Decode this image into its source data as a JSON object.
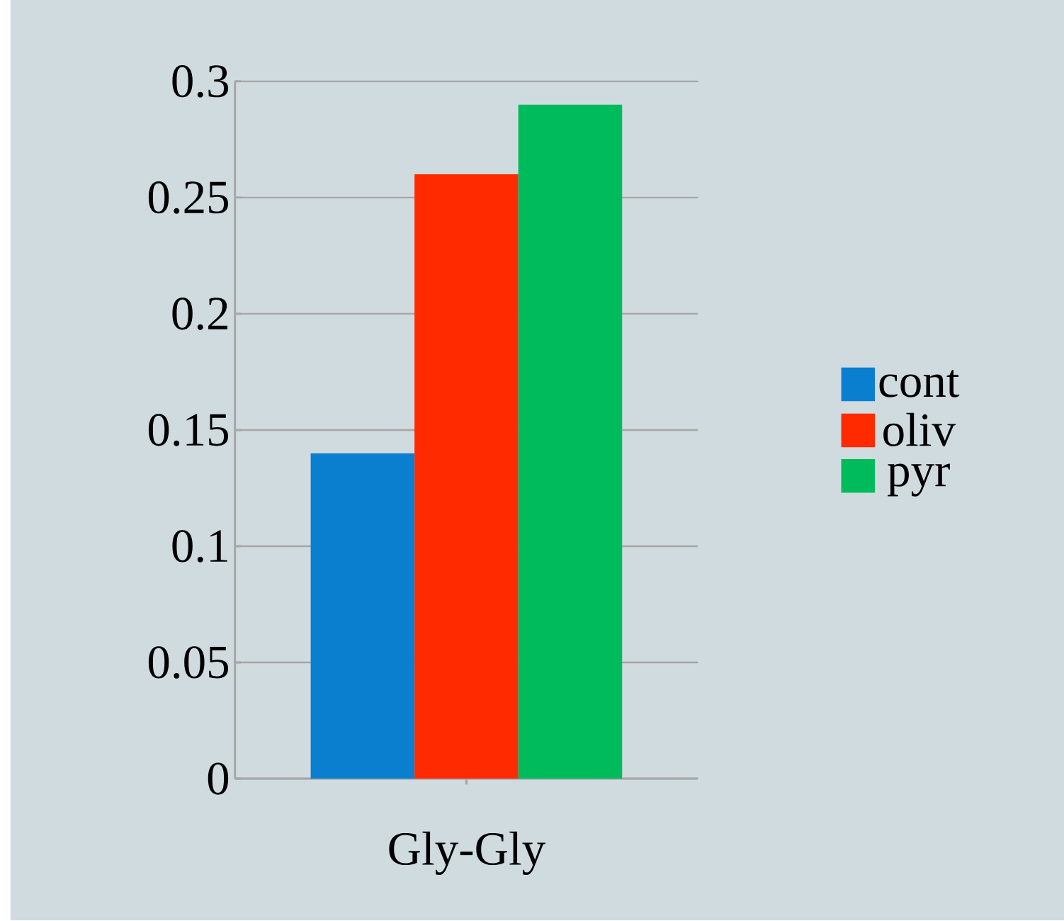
{
  "chart_data": {
    "type": "bar",
    "categories": [
      "Gly-Gly"
    ],
    "series": [
      {
        "name": "cont",
        "color": "#0a7fd0",
        "values": [
          0.14
        ]
      },
      {
        "name": "oliv",
        "color": "#ff2a00",
        "values": [
          0.26
        ]
      },
      {
        "name": "pyr",
        "color": "#00bb5c",
        "values": [
          0.29
        ]
      }
    ],
    "ylim": [
      0,
      0.3
    ],
    "yticks": [
      {
        "value": 0,
        "label": "0"
      },
      {
        "value": 0.05,
        "label": "0.05"
      },
      {
        "value": 0.1,
        "label": "0.1"
      },
      {
        "value": 0.15,
        "label": "0.15"
      },
      {
        "value": 0.2,
        "label": "0.2"
      },
      {
        "value": 0.25,
        "label": "0.25"
      },
      {
        "value": 0.3,
        "label": "0.3"
      }
    ],
    "grid": "y",
    "legend": "right"
  }
}
